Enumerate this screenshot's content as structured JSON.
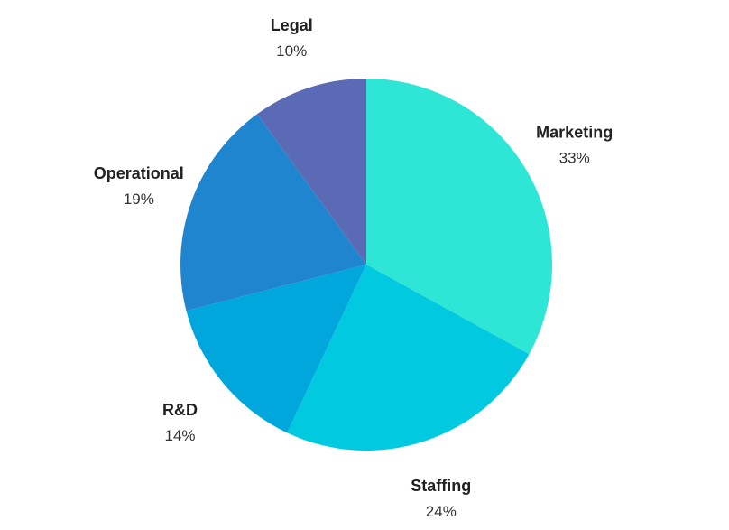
{
  "chart_data": {
    "type": "pie",
    "slices": [
      {
        "label": "Marketing",
        "value": 33,
        "value_label": "33%",
        "color": "#2ee6d6"
      },
      {
        "label": "Staffing",
        "value": 24,
        "value_label": "24%",
        "color": "#00c9e0"
      },
      {
        "label": "R&D",
        "value": 14,
        "value_label": "14%",
        "color": "#00a7dd"
      },
      {
        "label": "Operational",
        "value": 19,
        "value_label": "19%",
        "color": "#2085cf"
      },
      {
        "label": "Legal",
        "value": 10,
        "value_label": "10%",
        "color": "#5a6ab4"
      }
    ],
    "start": "12 o'clock",
    "direction": "clockwise",
    "legend": "none",
    "labels": "outside"
  }
}
